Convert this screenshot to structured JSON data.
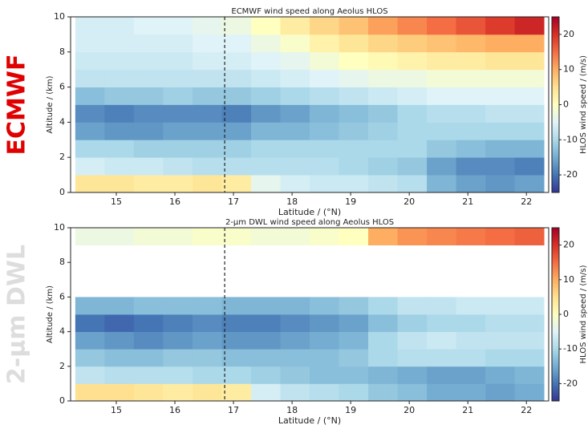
{
  "chart_data": [
    {
      "type": "heatmap",
      "panel_label": "ECMWF",
      "title": "ECMWF wind speed along Aeolus HLOS",
      "xlabel": "Latitude / (°N)",
      "ylabel": "Altitude / (km)",
      "colorbar_label": "HLOS wind speed / (m/s)",
      "x_edges": [
        14.3,
        14.8,
        15.3,
        15.8,
        16.3,
        16.8,
        17.3,
        17.8,
        18.3,
        18.8,
        19.3,
        19.8,
        20.3,
        20.8,
        21.3,
        21.8,
        22.3
      ],
      "y_edges": [
        0,
        1,
        2,
        3,
        4,
        5,
        6,
        7,
        8,
        9,
        10
      ],
      "values": [
        [
          4,
          4,
          3,
          3,
          4,
          3,
          -4,
          -6,
          -7,
          -7,
          -8,
          -9,
          -14,
          -16,
          -17,
          -16
        ],
        [
          -6,
          -7,
          -7,
          -8,
          -9,
          -9,
          -9,
          -9,
          -9,
          -10,
          -11,
          -12,
          -16,
          -18,
          -18,
          -19
        ],
        [
          -10,
          -10,
          -11,
          -11,
          -11,
          -11,
          -10,
          -10,
          -10,
          -10,
          -10,
          -10,
          -12,
          -13,
          -14,
          -14
        ],
        [
          -16,
          -17,
          -17,
          -16,
          -16,
          -16,
          -14,
          -14,
          -13,
          -12,
          -11,
          -10,
          -10,
          -10,
          -10,
          -10
        ],
        [
          -18,
          -19,
          -18,
          -18,
          -18,
          -19,
          -17,
          -16,
          -14,
          -13,
          -12,
          -10,
          -9,
          -9,
          -8,
          -8
        ],
        [
          -13,
          -12,
          -12,
          -11,
          -12,
          -12,
          -11,
          -10,
          -9,
          -8,
          -7,
          -6,
          -5,
          -5,
          -5,
          -5
        ],
        [
          -8,
          -8,
          -8,
          -8,
          -8,
          -8,
          -7,
          -6,
          -5,
          -4,
          -3,
          -3,
          -2,
          -2,
          -2,
          -2
        ],
        [
          -7,
          -7,
          -7,
          -7,
          -6,
          -6,
          -5,
          -4,
          -2,
          0,
          1,
          2,
          3,
          3,
          4,
          4
        ],
        [
          -6,
          -6,
          -6,
          -6,
          -5,
          -5,
          -3,
          -1,
          2,
          4,
          6,
          7,
          8,
          9,
          10,
          10
        ],
        [
          -6,
          -6,
          -5,
          -5,
          -4,
          -3,
          0,
          3,
          6,
          8,
          11,
          13,
          15,
          17,
          19,
          21
        ]
      ],
      "xlim": [
        14.22,
        22.38
      ],
      "ylim": [
        0,
        10
      ],
      "xticks": [
        15,
        16,
        17,
        18,
        19,
        20,
        21,
        22
      ],
      "yticks": [
        0,
        2,
        4,
        6,
        8,
        10
      ],
      "clim": [
        -25,
        25
      ],
      "cticks": [
        -20,
        -10,
        0,
        10,
        20
      ],
      "colormap": "RdYlBu_r",
      "vline": 16.85
    },
    {
      "type": "heatmap",
      "panel_label": "2-µm DWL",
      "title": "2-µm DWL wind speed along Aeolus HLOS",
      "xlabel": "Latitude / (°N)",
      "ylabel": "Altitude / (km)",
      "colorbar_label": "HLOS wind speed / (m/s)",
      "x_edges": [
        14.3,
        14.8,
        15.3,
        15.8,
        16.3,
        16.8,
        17.3,
        17.8,
        18.3,
        18.8,
        19.3,
        19.8,
        20.3,
        20.8,
        21.3,
        21.8,
        22.3
      ],
      "y_edges": [
        0,
        1,
        2,
        3,
        4,
        5,
        6,
        7,
        8,
        9,
        10
      ],
      "values": [
        [
          5,
          5,
          4,
          3,
          4,
          3,
          -6,
          -8,
          -9,
          -10,
          -12,
          -13,
          -15,
          -15,
          -16,
          -15
        ],
        [
          -8,
          -9,
          -9,
          -9,
          -10,
          -10,
          -11,
          -12,
          -13,
          -13,
          -14,
          -15,
          -16,
          -16,
          -15,
          -14
        ],
        [
          -12,
          -13,
          -13,
          -12,
          -12,
          -13,
          -13,
          -13,
          -13,
          -12,
          -10,
          -9,
          -9,
          -9,
          -10,
          -10
        ],
        [
          -16,
          -17,
          -18,
          -17,
          -16,
          -17,
          -17,
          -16,
          -15,
          -14,
          -10,
          -8,
          -7,
          -8,
          -8,
          -8
        ],
        [
          -20,
          -21,
          -20,
          -19,
          -18,
          -19,
          -19,
          -18,
          -17,
          -16,
          -13,
          -11,
          -10,
          -10,
          -9,
          -9
        ],
        [
          -14,
          -14,
          -13,
          -13,
          -13,
          -14,
          -14,
          -14,
          -13,
          -12,
          -10,
          -8,
          -8,
          -7,
          -7,
          -7
        ],
        [
          null,
          null,
          null,
          null,
          null,
          null,
          null,
          null,
          null,
          null,
          null,
          null,
          null,
          null,
          null,
          null
        ],
        [
          null,
          null,
          null,
          null,
          null,
          null,
          null,
          null,
          null,
          null,
          null,
          null,
          null,
          null,
          null,
          null
        ],
        [
          null,
          null,
          null,
          null,
          null,
          null,
          null,
          null,
          null,
          null,
          null,
          null,
          null,
          null,
          null,
          null
        ],
        [
          -3,
          -3,
          -2,
          -2,
          -1,
          -1,
          -2,
          -2,
          -1,
          0,
          10,
          12,
          13,
          14,
          15,
          16
        ]
      ],
      "xlim": [
        14.22,
        22.38
      ],
      "ylim": [
        0,
        10
      ],
      "xticks": [
        15,
        16,
        17,
        18,
        19,
        20,
        21,
        22
      ],
      "yticks": [
        0,
        2,
        4,
        6,
        8,
        10
      ],
      "clim": [
        -25,
        25
      ],
      "cticks": [
        -20,
        -10,
        0,
        10,
        20
      ],
      "colormap": "RdYlBu_r",
      "vline": 16.85
    }
  ]
}
